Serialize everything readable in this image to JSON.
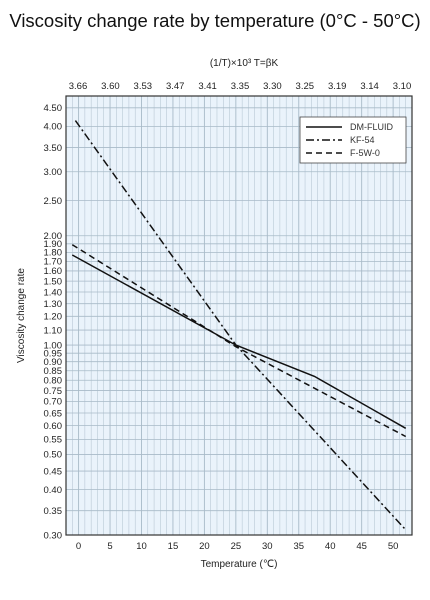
{
  "chart_data": {
    "type": "line",
    "title": "Viscosity change rate by temperature (0°C - 50°C)",
    "top_axis_label": "(1/T)×10³  T=βK",
    "top_ticks": [
      "3.66",
      "3.60",
      "3.53",
      "3.47",
      "3.41",
      "3.35",
      "3.30",
      "3.25",
      "3.19",
      "3.14",
      "3.10"
    ],
    "xlabel": "Temperature (℃)",
    "ylabel": "Viscosity change rate",
    "y_scale": "log",
    "xlim": [
      -2,
      53
    ],
    "ylim": [
      0.3,
      4.85
    ],
    "x_ticks": [
      0,
      5,
      10,
      15,
      20,
      25,
      30,
      35,
      40,
      45,
      50
    ],
    "y_ticks": [
      4.5,
      4.0,
      3.5,
      3.0,
      2.5,
      2.0,
      1.9,
      1.8,
      1.7,
      1.6,
      1.5,
      1.4,
      1.3,
      1.2,
      1.1,
      1.0,
      0.95,
      0.9,
      0.85,
      0.8,
      0.75,
      0.7,
      0.65,
      0.6,
      0.55,
      0.5,
      0.45,
      0.4,
      0.35,
      0.3
    ],
    "y_tick_labels": [
      "4.50",
      "4.00",
      "3.50",
      "3.00",
      "2.50",
      "2.00",
      "1.90",
      "1.80",
      "1.70",
      "1.60",
      "1.50",
      "1.40",
      "1.30",
      "1.20",
      "1.10",
      "1.00",
      "0.95",
      "0.90",
      "0.85",
      "0.80",
      "0.75",
      "0.70",
      "0.65",
      "0.60",
      "0.55",
      "0.50",
      "0.45",
      "0.40",
      "0.35",
      "0.30"
    ],
    "legend_position": "top-right",
    "grid": true,
    "series": [
      {
        "name": "DM-FLUID",
        "style": "solid",
        "x": [
          -1,
          25,
          37.5,
          52
        ],
        "y": [
          1.77,
          1.0,
          0.82,
          0.59
        ]
      },
      {
        "name": "KF-54",
        "style": "dashdot",
        "x": [
          -0.5,
          25,
          52
        ],
        "y": [
          4.15,
          1.0,
          0.31
        ]
      },
      {
        "name": "F-5W-0",
        "style": "dashed",
        "x": [
          -1,
          25,
          52
        ],
        "y": [
          1.89,
          0.99,
          0.56
        ]
      }
    ],
    "colors": {
      "background": "#eaf3fb",
      "grid": "#a8bac8",
      "frame": "#333333",
      "line": "#111111"
    }
  }
}
